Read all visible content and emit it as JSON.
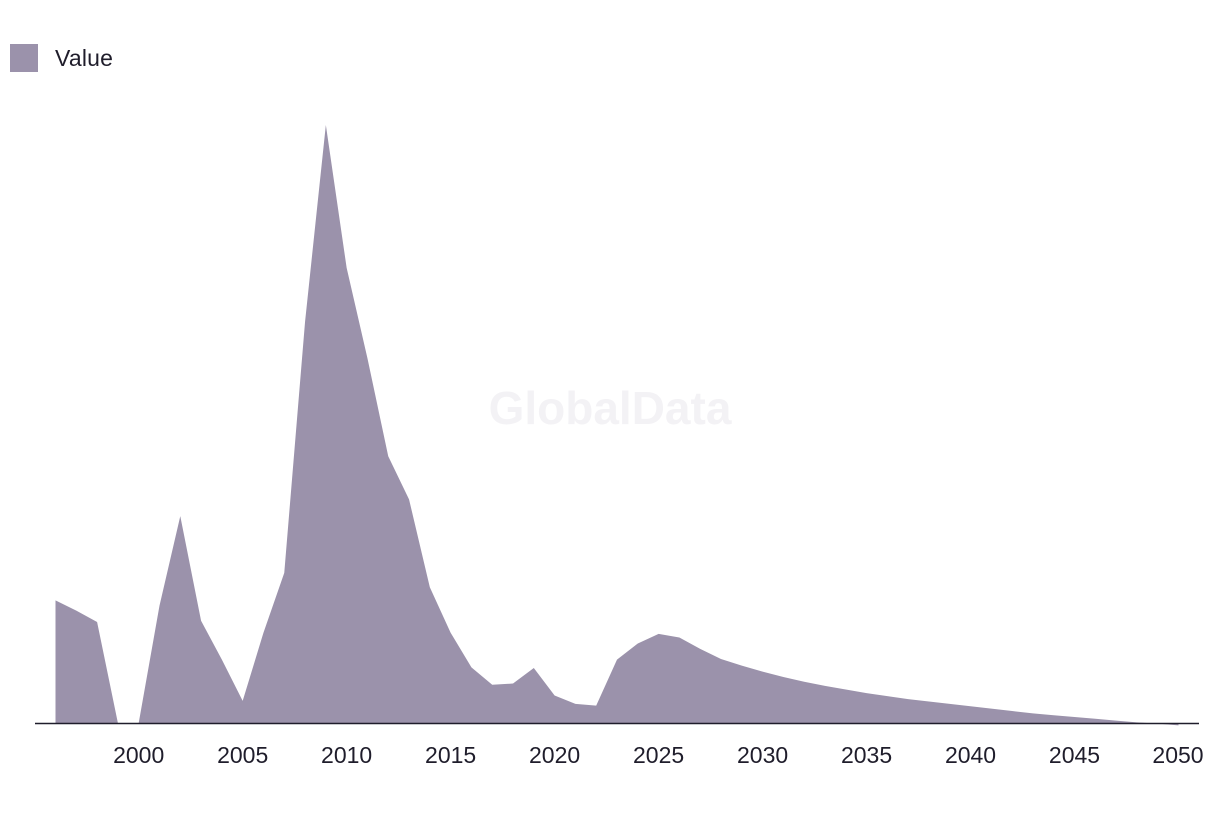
{
  "watermark": "GlobalData",
  "colors": {
    "area": "#9b92ab",
    "axis": "#1f1d2b",
    "text": "#1f1d2b"
  },
  "chart_data": {
    "type": "area",
    "legend": {
      "position": "top-left",
      "entries": [
        "Value"
      ]
    },
    "grid": false,
    "xlim": [
      1996,
      2050
    ],
    "ylim": [
      0,
      100
    ],
    "xticks": [
      2000,
      2005,
      2010,
      2015,
      2020,
      2025,
      2030,
      2035,
      2040,
      2045,
      2050
    ],
    "x": [
      1996,
      1997,
      1998,
      1999,
      2000,
      2001,
      2002,
      2003,
      2004,
      2005,
      2006,
      2007,
      2008,
      2009,
      2010,
      2011,
      2012,
      2013,
      2014,
      2015,
      2016,
      2017,
      2018,
      2019,
      2020,
      2021,
      2022,
      2023,
      2024,
      2025,
      2026,
      2027,
      2028,
      2029,
      2030,
      2031,
      2032,
      2033,
      2034,
      2035,
      2036,
      2037,
      2038,
      2039,
      2040,
      2041,
      2042,
      2043,
      2044,
      2045,
      2046,
      2047,
      2048,
      2049,
      2050
    ],
    "series": [
      {
        "name": "Value",
        "values": [
          20.5,
          18.8,
          16.9,
          0,
          0,
          19.6,
          34.6,
          17.1,
          10.6,
          3.7,
          15.1,
          25.1,
          67.1,
          100,
          76.1,
          61,
          44.6,
          37.4,
          22.7,
          15.1,
          9.3,
          6.4,
          6.6,
          9.2,
          4.6,
          3.2,
          2.9,
          10.6,
          13.3,
          14.9,
          14.3,
          12.4,
          10.7,
          9.6,
          8.6,
          7.7,
          6.9,
          6.2,
          5.6,
          5.0,
          4.5,
          4.0,
          3.6,
          3.2,
          2.8,
          2.4,
          2.0,
          1.6,
          1.3,
          1.0,
          0.7,
          0.4,
          0.1,
          -0.1,
          -0.4
        ]
      }
    ]
  }
}
